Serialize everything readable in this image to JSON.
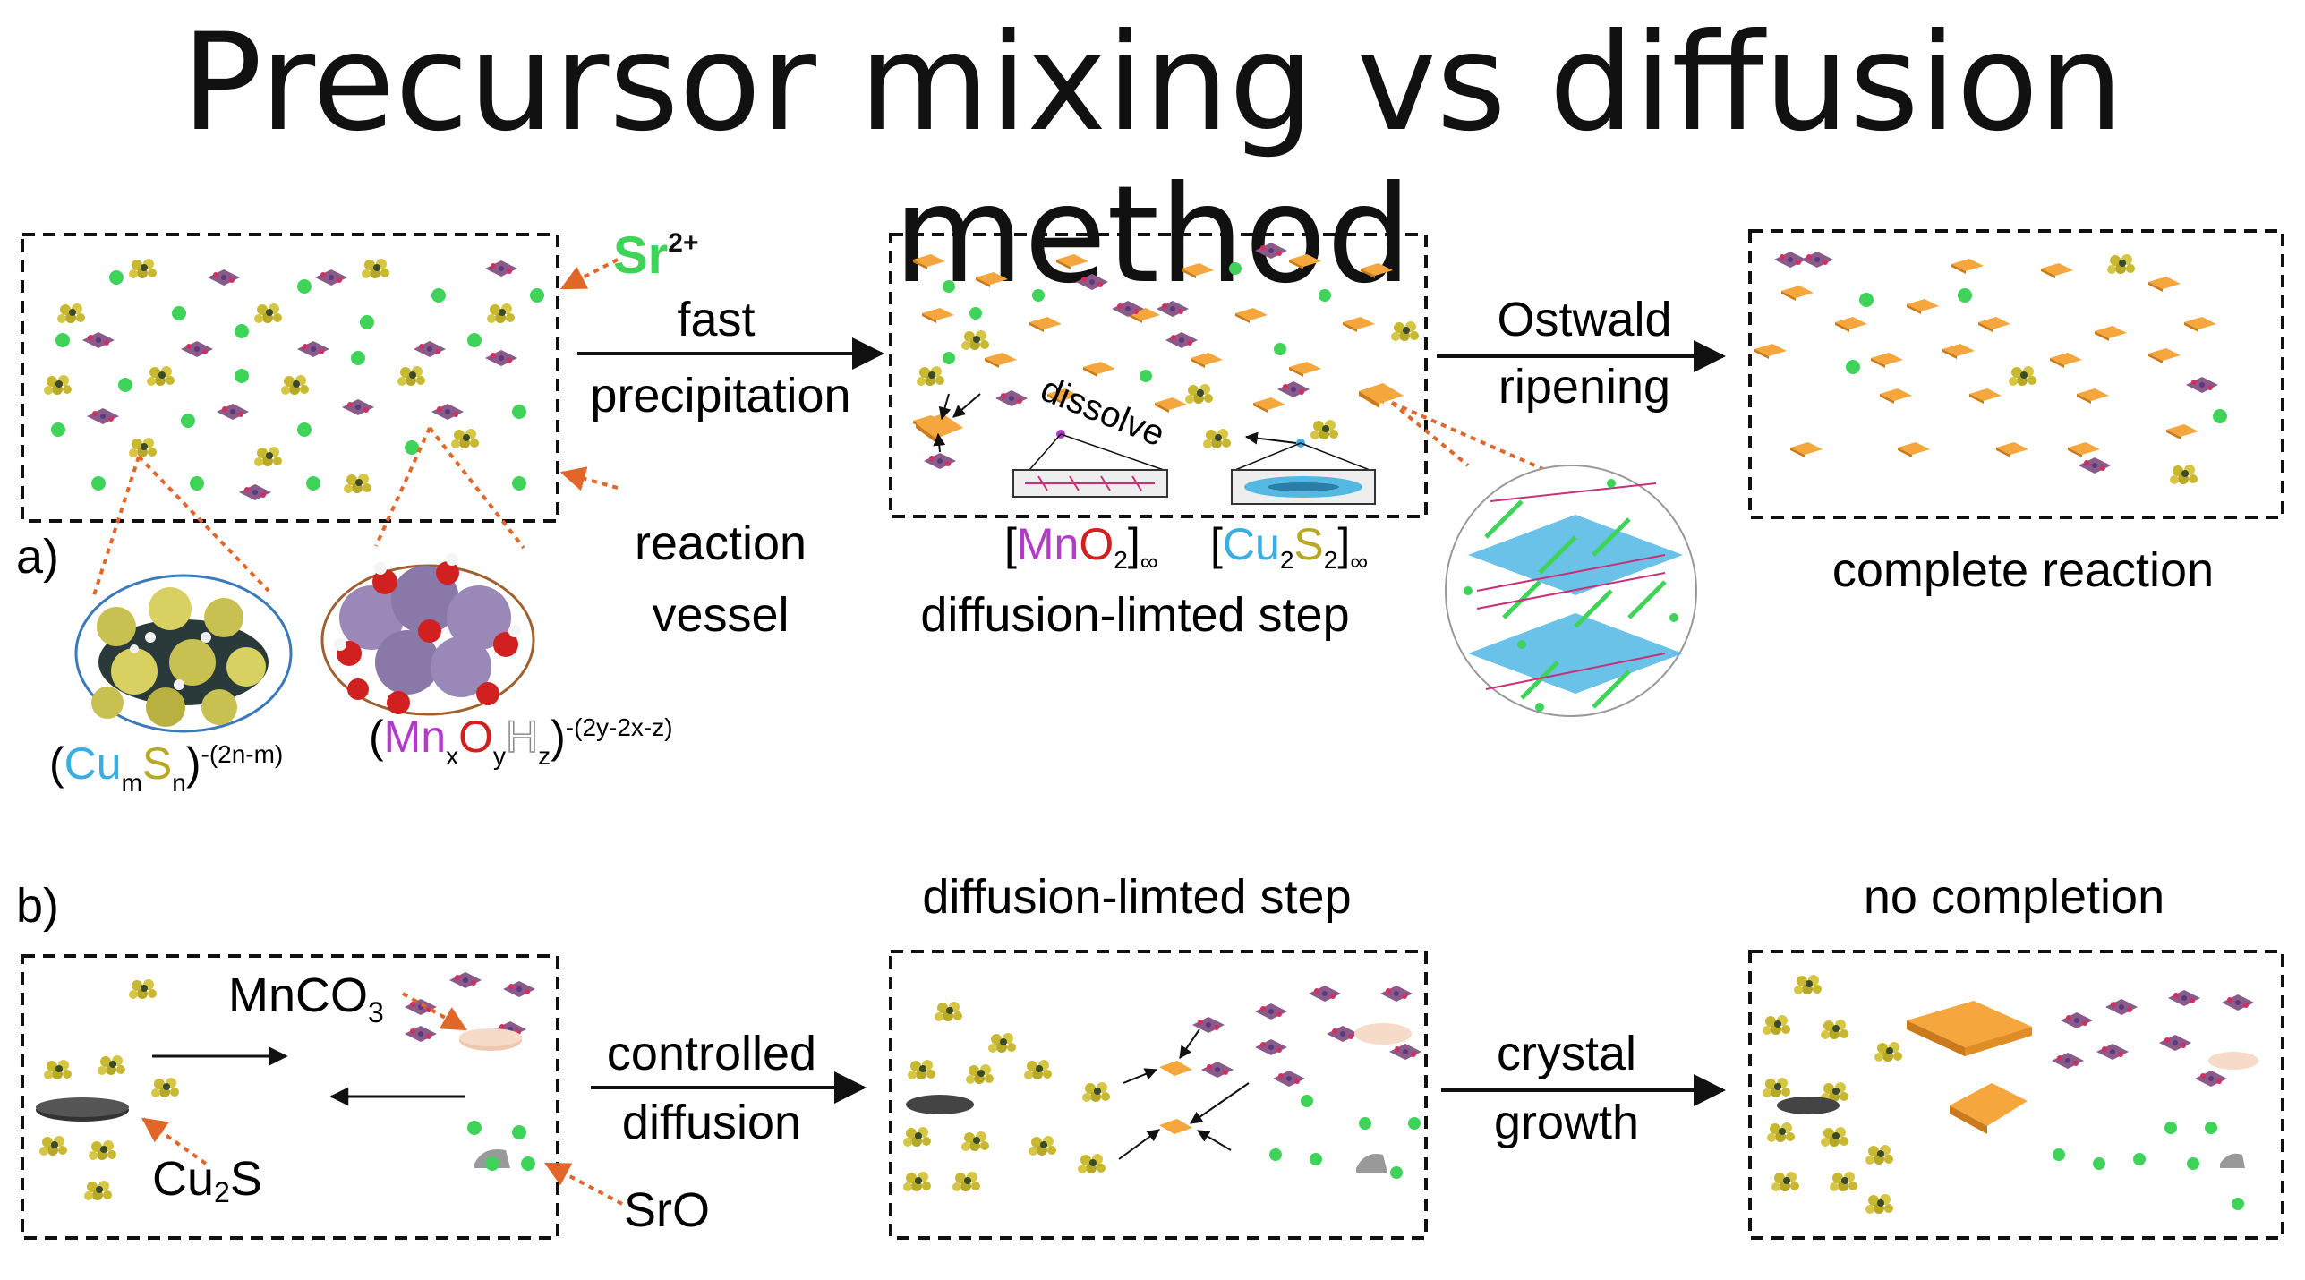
{
  "title": "Precursor mixing vs diffusion method",
  "panel_a": {
    "letter": "a)",
    "sr_ion": {
      "base": "Sr",
      "sup": "2+"
    },
    "arrow1": {
      "line1": "fast",
      "line2": "precipitation"
    },
    "vessel": {
      "line1": "reaction",
      "line2": "vessel"
    },
    "dissolve": "dissolve",
    "mno2": {
      "open": "[",
      "mn": "Mn",
      "o": "O",
      "sub": "2",
      "close": "]",
      "inf": "∞"
    },
    "cu2s2": {
      "open": "[",
      "cu": "Cu",
      "sub1": "2",
      "s": "S",
      "sub2": "2",
      "close": "]",
      "inf": "∞"
    },
    "step_label": "diffusion-limted step",
    "arrow2": {
      "line1": "Ostwald",
      "line2": "ripening"
    },
    "complete": "complete reaction",
    "cums": {
      "open": "(",
      "cu": "Cu",
      "m": "m",
      "s": "S",
      "n": "n",
      "close": ")",
      "charge": "-(2n-m)"
    },
    "mnoh": {
      "open": "(",
      "mn": "Mn",
      "x": "x",
      "o": "O",
      "y": "y",
      "h": "H",
      "z": "z",
      "close": ")",
      "charge": "-(2y-2x-z)"
    }
  },
  "panel_b": {
    "letter": "b)",
    "mnco3": {
      "base": "MnCO",
      "sub": "3"
    },
    "cu2s": {
      "base": "Cu",
      "sub": "2",
      "tail": "S"
    },
    "sro": "SrO",
    "arrow1": {
      "line1": "controlled",
      "line2": "diffusion"
    },
    "step_label": "diffusion-limted step",
    "arrow2": {
      "line1": "crystal",
      "line2": "growth"
    },
    "no_completion": "no completion"
  },
  "colors": {
    "sr_green": "#3fd35a",
    "plate_orange": "#f5a63c",
    "copper_blue": "#3aaee0",
    "sulfur_yellow": "#c8b830",
    "manganese_magenta": "#b03cc8",
    "oxygen_red": "#d02020",
    "leader_orange": "#e0662a",
    "cluster_purple": "#8a5a8a"
  }
}
